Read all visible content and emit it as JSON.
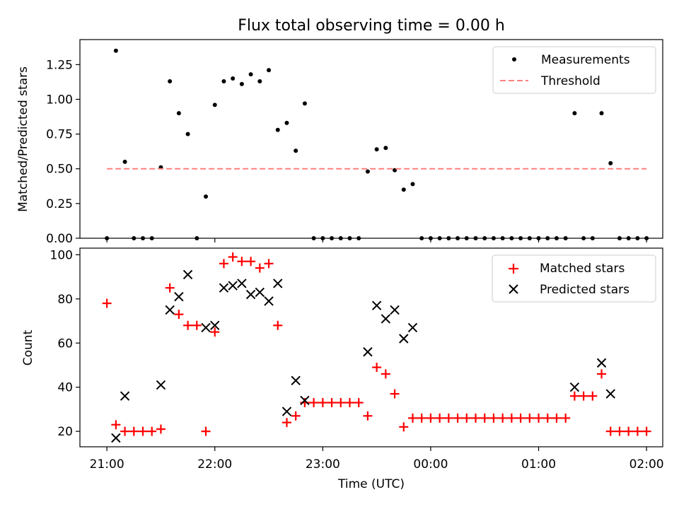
{
  "chart_data": [
    {
      "type": "scatter",
      "title": "Flux total observing time = 0.00 h",
      "xlabel": "",
      "ylabel": "Matched/Predicted stars",
      "xlim": [
        "20:45",
        "02:09"
      ],
      "ylim": [
        0,
        1.43
      ],
      "yticks": [
        0.0,
        0.25,
        0.5,
        0.75,
        1.0,
        1.25
      ],
      "yticklabels": [
        "0.00",
        "0.25",
        "0.50",
        "0.75",
        "1.00",
        "1.25"
      ],
      "legend": {
        "location": "upper right"
      },
      "series": [
        {
          "name": "Measurements",
          "marker": "dot",
          "color": "#000000",
          "points": [
            [
              "21:00",
              0.0
            ],
            [
              "21:05",
              1.35
            ],
            [
              "21:10",
              0.55
            ],
            [
              "21:15",
              0.0
            ],
            [
              "21:20",
              0.0
            ],
            [
              "21:25",
              0.0
            ],
            [
              "21:30",
              0.51
            ],
            [
              "21:35",
              1.13
            ],
            [
              "21:40",
              0.9
            ],
            [
              "21:45",
              0.75
            ],
            [
              "21:50",
              0.0
            ],
            [
              "21:55",
              0.3
            ],
            [
              "22:00",
              0.96
            ],
            [
              "22:05",
              1.13
            ],
            [
              "22:10",
              1.15
            ],
            [
              "22:15",
              1.11
            ],
            [
              "22:20",
              1.18
            ],
            [
              "22:25",
              1.13
            ],
            [
              "22:30",
              1.21
            ],
            [
              "22:35",
              0.78
            ],
            [
              "22:40",
              0.83
            ],
            [
              "22:45",
              0.63
            ],
            [
              "22:50",
              0.97
            ],
            [
              "22:55",
              0.0
            ],
            [
              "23:00",
              0.0
            ],
            [
              "23:05",
              0.0
            ],
            [
              "23:10",
              0.0
            ],
            [
              "23:15",
              0.0
            ],
            [
              "23:20",
              0.0
            ],
            [
              "23:25",
              0.48
            ],
            [
              "23:30",
              0.64
            ],
            [
              "23:35",
              0.65
            ],
            [
              "23:40",
              0.49
            ],
            [
              "23:45",
              0.35
            ],
            [
              "23:50",
              0.39
            ],
            [
              "23:55",
              0.0
            ],
            [
              "00:00",
              0.0
            ],
            [
              "00:05",
              0.0
            ],
            [
              "00:10",
              0.0
            ],
            [
              "00:15",
              0.0
            ],
            [
              "00:20",
              0.0
            ],
            [
              "00:25",
              0.0
            ],
            [
              "00:30",
              0.0
            ],
            [
              "00:35",
              0.0
            ],
            [
              "00:40",
              0.0
            ],
            [
              "00:45",
              0.0
            ],
            [
              "00:50",
              0.0
            ],
            [
              "00:55",
              0.0
            ],
            [
              "01:00",
              0.0
            ],
            [
              "01:05",
              0.0
            ],
            [
              "01:10",
              0.0
            ],
            [
              "01:15",
              0.0
            ],
            [
              "01:20",
              0.9
            ],
            [
              "01:25",
              0.0
            ],
            [
              "01:30",
              0.0
            ],
            [
              "01:35",
              0.9
            ],
            [
              "01:40",
              0.54
            ],
            [
              "01:45",
              0.0
            ],
            [
              "01:50",
              0.0
            ],
            [
              "01:55",
              0.0
            ],
            [
              "02:00",
              0.0
            ]
          ]
        },
        {
          "name": "Threshold",
          "marker": "dashed-line",
          "color": "#ff8080",
          "points": [
            [
              "21:00",
              0.5
            ],
            [
              "02:00",
              0.5
            ]
          ]
        }
      ]
    },
    {
      "type": "scatter",
      "title": "",
      "xlabel": "Time (UTC)",
      "ylabel": "Count",
      "xlim": [
        "20:45",
        "02:09"
      ],
      "ylim": [
        13,
        103
      ],
      "yticks": [
        20,
        40,
        60,
        80,
        100
      ],
      "yticklabels": [
        "20",
        "40",
        "60",
        "80",
        "100"
      ],
      "xticks": [
        "21:00",
        "22:00",
        "23:00",
        "00:00",
        "01:00",
        "02:00"
      ],
      "xticklabels": [
        "21:00",
        "22:00",
        "23:00",
        "00:00",
        "01:00",
        "02:00"
      ],
      "legend": {
        "location": "upper right"
      },
      "series": [
        {
          "name": "Matched stars",
          "marker": "plus",
          "color": "#ff0000",
          "points": [
            [
              "21:00",
              78
            ],
            [
              "21:05",
              23
            ],
            [
              "21:10",
              20
            ],
            [
              "21:15",
              20
            ],
            [
              "21:20",
              20
            ],
            [
              "21:25",
              20
            ],
            [
              "21:30",
              21
            ],
            [
              "21:35",
              85
            ],
            [
              "21:40",
              73
            ],
            [
              "21:45",
              68
            ],
            [
              "21:50",
              68
            ],
            [
              "21:55",
              20
            ],
            [
              "22:00",
              65
            ],
            [
              "22:05",
              96
            ],
            [
              "22:10",
              99
            ],
            [
              "22:15",
              97
            ],
            [
              "22:20",
              97
            ],
            [
              "22:25",
              94
            ],
            [
              "22:30",
              96
            ],
            [
              "22:35",
              68
            ],
            [
              "22:40",
              24
            ],
            [
              "22:45",
              27
            ],
            [
              "22:50",
              33
            ],
            [
              "22:55",
              33
            ],
            [
              "23:00",
              33
            ],
            [
              "23:05",
              33
            ],
            [
              "23:10",
              33
            ],
            [
              "23:15",
              33
            ],
            [
              "23:20",
              33
            ],
            [
              "23:25",
              27
            ],
            [
              "23:30",
              49
            ],
            [
              "23:35",
              46
            ],
            [
              "23:40",
              37
            ],
            [
              "23:45",
              22
            ],
            [
              "23:50",
              26
            ],
            [
              "23:55",
              26
            ],
            [
              "00:00",
              26
            ],
            [
              "00:05",
              26
            ],
            [
              "00:10",
              26
            ],
            [
              "00:15",
              26
            ],
            [
              "00:20",
              26
            ],
            [
              "00:25",
              26
            ],
            [
              "00:30",
              26
            ],
            [
              "00:35",
              26
            ],
            [
              "00:40",
              26
            ],
            [
              "00:45",
              26
            ],
            [
              "00:50",
              26
            ],
            [
              "00:55",
              26
            ],
            [
              "01:00",
              26
            ],
            [
              "01:05",
              26
            ],
            [
              "01:10",
              26
            ],
            [
              "01:15",
              26
            ],
            [
              "01:20",
              36
            ],
            [
              "01:25",
              36
            ],
            [
              "01:30",
              36
            ],
            [
              "01:35",
              46
            ],
            [
              "01:40",
              20
            ],
            [
              "01:45",
              20
            ],
            [
              "01:50",
              20
            ],
            [
              "01:55",
              20
            ],
            [
              "02:00",
              20
            ]
          ]
        },
        {
          "name": "Predicted stars",
          "marker": "x",
          "color": "#000000",
          "points": [
            [
              "21:05",
              17
            ],
            [
              "21:10",
              36
            ],
            [
              "21:30",
              41
            ],
            [
              "21:35",
              75
            ],
            [
              "21:40",
              81
            ],
            [
              "21:45",
              91
            ],
            [
              "21:55",
              67
            ],
            [
              "22:00",
              68
            ],
            [
              "22:05",
              85
            ],
            [
              "22:10",
              86
            ],
            [
              "22:15",
              87
            ],
            [
              "22:20",
              82
            ],
            [
              "22:25",
              83
            ],
            [
              "22:30",
              79
            ],
            [
              "22:35",
              87
            ],
            [
              "22:40",
              29
            ],
            [
              "22:45",
              43
            ],
            [
              "22:50",
              34
            ],
            [
              "23:25",
              56
            ],
            [
              "23:30",
              77
            ],
            [
              "23:35",
              71
            ],
            [
              "23:40",
              75
            ],
            [
              "23:45",
              62
            ],
            [
              "23:50",
              67
            ],
            [
              "01:20",
              40
            ],
            [
              "01:35",
              51
            ],
            [
              "01:40",
              37
            ]
          ]
        }
      ]
    }
  ]
}
